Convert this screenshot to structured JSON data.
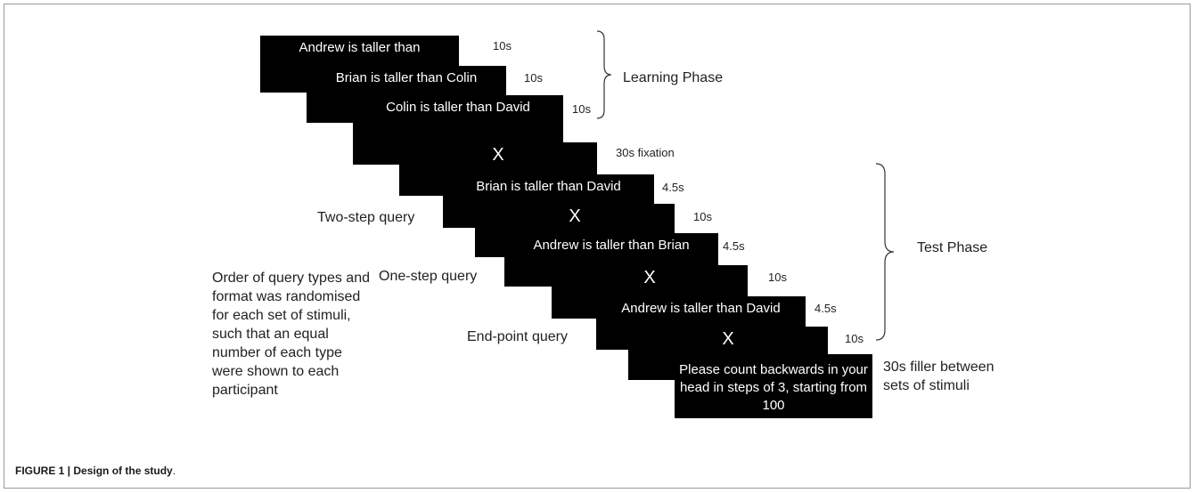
{
  "slides": [
    {
      "text": "Andrew is taller than",
      "timing": "10s"
    },
    {
      "text": "Brian is taller than Colin",
      "timing": "10s"
    },
    {
      "text": "Colin is taller than David",
      "timing": "10s"
    },
    {
      "text": "X",
      "timing": "30s fixation"
    },
    {
      "text": "Brian is taller than David",
      "timing": "4.5s"
    },
    {
      "text": "X",
      "timing": "10s"
    },
    {
      "text": "Andrew is taller than Brian",
      "timing": "4.5s"
    },
    {
      "text": "X",
      "timing": "10s"
    },
    {
      "text": "Andrew is taller than David",
      "timing": "4.5s"
    },
    {
      "text": "X",
      "timing": "10s"
    },
    {
      "text": "Please count backwards in your head in steps of 3, starting from 100",
      "timing": "30s filler between sets of stimuli"
    }
  ],
  "phases": {
    "learning": "Learning Phase",
    "test": "Test Phase"
  },
  "query_labels": {
    "two_step": "Two-step query",
    "one_step": "One-step query",
    "end_point": "End-point query"
  },
  "note": "Order of query types and format was randomised for each set of stimuli, such that an equal number of each type were shown to each participant",
  "caption": {
    "bold": "FIGURE 1 | Design of the study",
    "rest": "."
  }
}
